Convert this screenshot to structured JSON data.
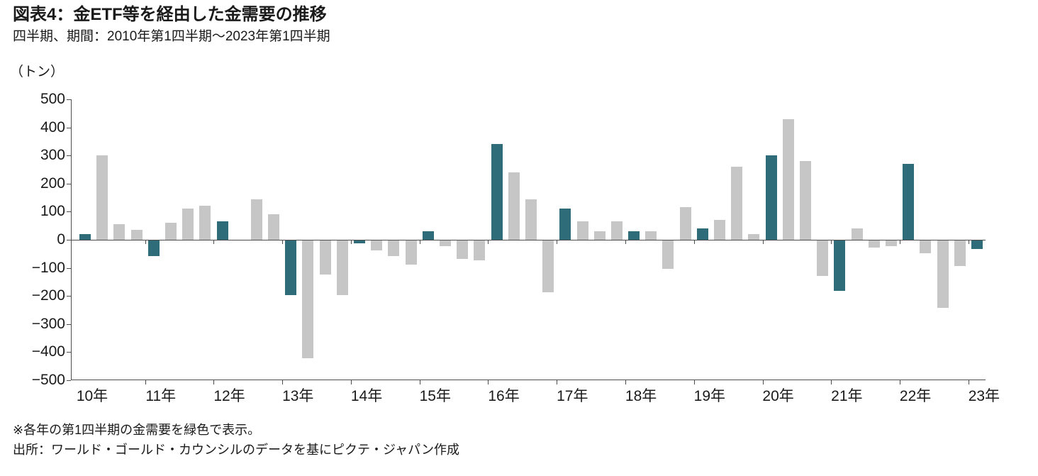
{
  "header": {
    "title": "図表4：金ETF等を経由した金需要の推移",
    "subtitle": "四半期、期間：2010年第1四半期～2023年第1四半期",
    "unit_label": "（トン）"
  },
  "chart_data": {
    "type": "bar",
    "title": "図表4：金ETF等を経由した金需要の推移",
    "subtitle": "四半期、期間：2010年第1四半期～2023年第1四半期",
    "ylabel": "トン",
    "ylim": [
      -500,
      500
    ],
    "ytick_interval": 100,
    "grid": false,
    "legend_position": "none",
    "bar_colors": {
      "q1_highlight": "#2E6C79",
      "default": "#C6C6C6"
    },
    "highlight_rule": "各年の第1四半期（Q1）の棒を緑色（ティール）で表示、その他は灰色",
    "years": [
      {
        "label": "10年",
        "values": [
          20,
          300,
          55,
          35
        ]
      },
      {
        "label": "11年",
        "values": [
          -55,
          60,
          110,
          120
        ]
      },
      {
        "label": "12年",
        "values": [
          65,
          0,
          145,
          90
        ]
      },
      {
        "label": "13年",
        "values": [
          -195,
          -420,
          -120,
          -195
        ]
      },
      {
        "label": "14年",
        "values": [
          -10,
          -35,
          -55,
          -85
        ]
      },
      {
        "label": "15年",
        "values": [
          30,
          -20,
          -65,
          -70
        ]
      },
      {
        "label": "16年",
        "values": [
          340,
          240,
          145,
          -185
        ]
      },
      {
        "label": "17年",
        "values": [
          110,
          65,
          30,
          65
        ]
      },
      {
        "label": "18年",
        "values": [
          30,
          30,
          -100,
          115
        ]
      },
      {
        "label": "19年",
        "values": [
          40,
          70,
          260,
          20
        ]
      },
      {
        "label": "20年",
        "values": [
          300,
          430,
          280,
          -125
        ]
      },
      {
        "label": "21年",
        "values": [
          -180,
          40,
          -25,
          -20
        ]
      },
      {
        "label": "22年",
        "values": [
          270,
          -45,
          -240,
          -90
        ]
      },
      {
        "label": "23年",
        "values": [
          -30
        ]
      }
    ]
  },
  "footer": {
    "note": "※各年の第1四半期の金需要を緑色で表示。",
    "source": "出所：ワールド・ゴールド・カウンシルのデータを基にピクテ・ジャパン作成"
  }
}
